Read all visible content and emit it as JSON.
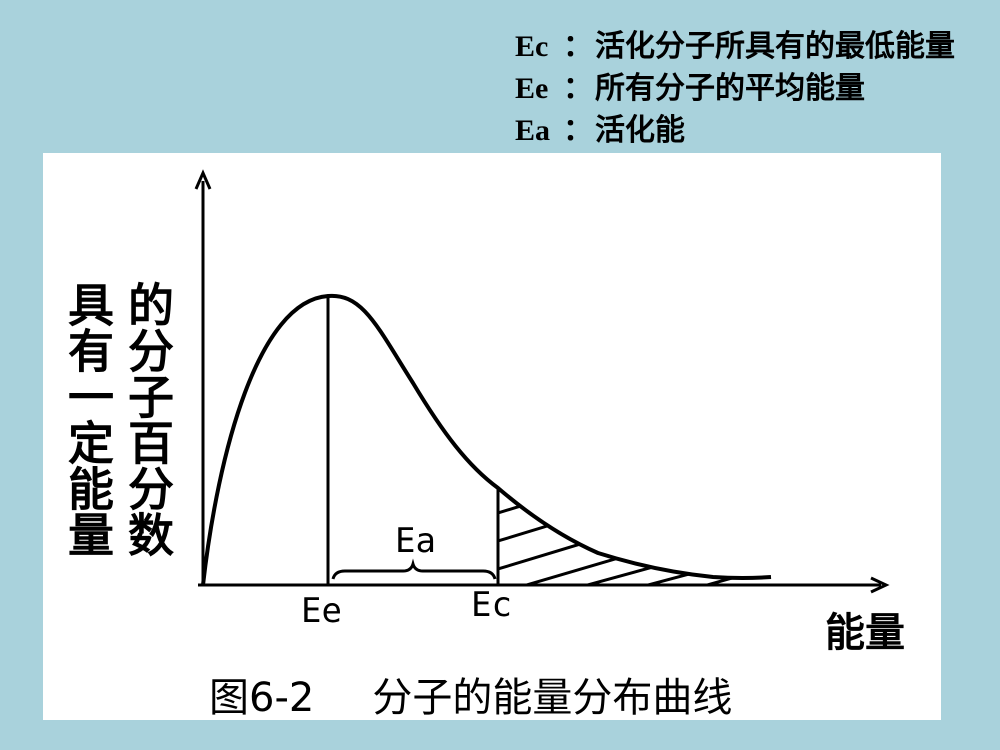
{
  "legend": [
    {
      "term": "Ec",
      "sep": "：",
      "desc": "活化分子所具有的最低能量"
    },
    {
      "term": "Ee",
      "sep": "：",
      "desc": "所有分子的平均能量"
    },
    {
      "term": "Ea",
      "sep": "：",
      "desc": "活化能"
    }
  ],
  "diagram": {
    "ylabel_col1": "具有一定能量",
    "ylabel_col2": "的分子百分数",
    "xlabel": "能量",
    "tick_ee": "Ee",
    "tick_ec": "Ec",
    "ea_label": "Ea",
    "caption_number": "图6-2",
    "caption_text": "分子的能量分布曲线"
  }
}
